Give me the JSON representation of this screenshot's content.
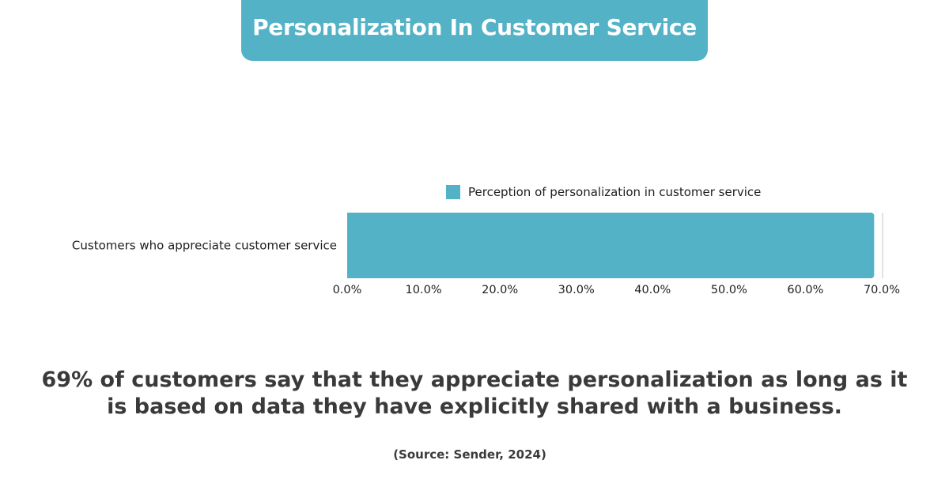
{
  "header": {
    "title": "Personalization In Customer Service"
  },
  "colors": {
    "accent": "#54b2c6",
    "text": "#3a3a3a"
  },
  "chart_data": {
    "type": "bar",
    "orientation": "horizontal",
    "categories": [
      "Customers who appreciate customer service"
    ],
    "series": [
      {
        "name": "Perception of personalization in customer service",
        "values": [
          69.0
        ]
      }
    ],
    "xlim": [
      0,
      70
    ],
    "x_ticks": [
      0,
      10,
      20,
      30,
      40,
      50,
      60,
      70
    ],
    "x_tick_labels": [
      "0.0%",
      "10.0%",
      "20.0%",
      "30.0%",
      "40.0%",
      "50.0%",
      "60.0%",
      "70.0%"
    ],
    "legend_position": "top-center",
    "grid": false
  },
  "footer": {
    "headline": "69% of customers say that they appreciate personalization as long as it is based on data they have explicitly shared with a business.",
    "source": "(Source: Sender, 2024)"
  }
}
